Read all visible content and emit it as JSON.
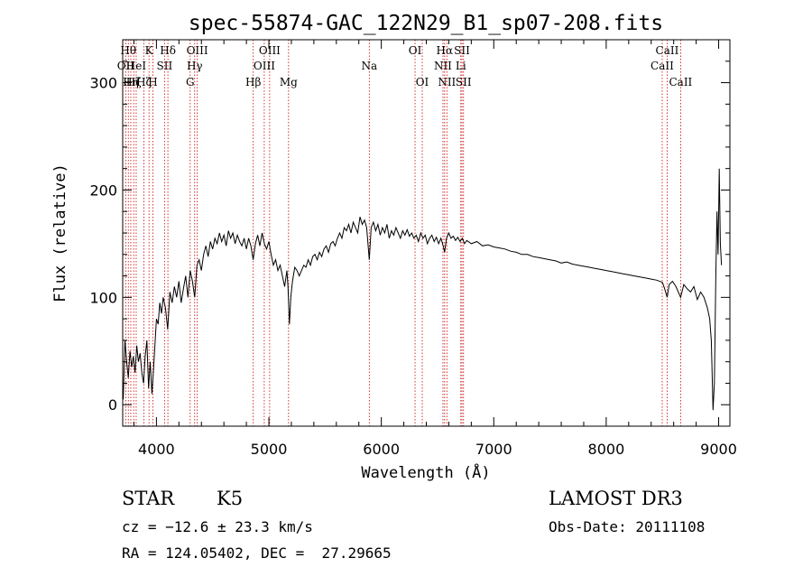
{
  "chart_data": {
    "type": "line",
    "title": "spec-55874-GAC_122N29_B1_sp07-208.fits",
    "xlabel": "Wavelength (Å)",
    "ylabel": "Flux (relative)",
    "xlim": [
      3700,
      9100
    ],
    "ylim": [
      -20,
      340
    ],
    "xticks": [
      4000,
      5000,
      6000,
      7000,
      8000,
      9000
    ],
    "yticks": [
      0,
      100,
      200,
      300
    ],
    "grid": false,
    "line_color": "#000000",
    "marker_color": "#cc0000",
    "series": [
      {
        "name": "flux",
        "points": [
          [
            3705,
            5
          ],
          [
            3720,
            60
          ],
          [
            3735,
            40
          ],
          [
            3750,
            25
          ],
          [
            3765,
            50
          ],
          [
            3780,
            35
          ],
          [
            3795,
            45
          ],
          [
            3810,
            30
          ],
          [
            3825,
            55
          ],
          [
            3840,
            40
          ],
          [
            3855,
            48
          ],
          [
            3870,
            30
          ],
          [
            3885,
            20
          ],
          [
            3900,
            45
          ],
          [
            3915,
            60
          ],
          [
            3930,
            15
          ],
          [
            3945,
            40
          ],
          [
            3960,
            10
          ],
          [
            3975,
            35
          ],
          [
            4000,
            80
          ],
          [
            4015,
            75
          ],
          [
            4030,
            95
          ],
          [
            4045,
            85
          ],
          [
            4060,
            100
          ],
          [
            4080,
            90
          ],
          [
            4100,
            70
          ],
          [
            4120,
            105
          ],
          [
            4140,
            95
          ],
          [
            4160,
            110
          ],
          [
            4180,
            100
          ],
          [
            4200,
            115
          ],
          [
            4220,
            95
          ],
          [
            4240,
            108
          ],
          [
            4260,
            120
          ],
          [
            4280,
            100
          ],
          [
            4300,
            125
          ],
          [
            4320,
            115
          ],
          [
            4340,
            100
          ],
          [
            4360,
            130
          ],
          [
            4380,
            135
          ],
          [
            4400,
            125
          ],
          [
            4420,
            140
          ],
          [
            4440,
            148
          ],
          [
            4460,
            138
          ],
          [
            4480,
            152
          ],
          [
            4500,
            145
          ],
          [
            4520,
            155
          ],
          [
            4540,
            150
          ],
          [
            4560,
            160
          ],
          [
            4580,
            152
          ],
          [
            4600,
            158
          ],
          [
            4620,
            148
          ],
          [
            4640,
            162
          ],
          [
            4660,
            155
          ],
          [
            4680,
            160
          ],
          [
            4700,
            150
          ],
          [
            4720,
            158
          ],
          [
            4740,
            152
          ],
          [
            4760,
            148
          ],
          [
            4780,
            155
          ],
          [
            4800,
            145
          ],
          [
            4820,
            155
          ],
          [
            4840,
            148
          ],
          [
            4860,
            135
          ],
          [
            4880,
            150
          ],
          [
            4900,
            158
          ],
          [
            4920,
            148
          ],
          [
            4940,
            160
          ],
          [
            4960,
            150
          ],
          [
            4980,
            145
          ],
          [
            5000,
            152
          ],
          [
            5020,
            140
          ],
          [
            5040,
            130
          ],
          [
            5060,
            135
          ],
          [
            5080,
            125
          ],
          [
            5100,
            130
          ],
          [
            5120,
            120
          ],
          [
            5140,
            110
          ],
          [
            5160,
            125
          ],
          [
            5170,
            110
          ],
          [
            5183,
            75
          ],
          [
            5195,
            100
          ],
          [
            5210,
            115
          ],
          [
            5230,
            128
          ],
          [
            5250,
            125
          ],
          [
            5270,
            120
          ],
          [
            5290,
            125
          ],
          [
            5310,
            130
          ],
          [
            5330,
            128
          ],
          [
            5350,
            135
          ],
          [
            5370,
            130
          ],
          [
            5390,
            138
          ],
          [
            5410,
            140
          ],
          [
            5430,
            135
          ],
          [
            5450,
            142
          ],
          [
            5470,
            138
          ],
          [
            5490,
            145
          ],
          [
            5510,
            148
          ],
          [
            5530,
            142
          ],
          [
            5550,
            150
          ],
          [
            5570,
            152
          ],
          [
            5590,
            148
          ],
          [
            5610,
            155
          ],
          [
            5630,
            160
          ],
          [
            5650,
            155
          ],
          [
            5670,
            165
          ],
          [
            5690,
            162
          ],
          [
            5710,
            168
          ],
          [
            5730,
            160
          ],
          [
            5750,
            170
          ],
          [
            5770,
            165
          ],
          [
            5790,
            160
          ],
          [
            5810,
            175
          ],
          [
            5830,
            168
          ],
          [
            5850,
            172
          ],
          [
            5870,
            165
          ],
          [
            5893,
            135
          ],
          [
            5910,
            165
          ],
          [
            5930,
            170
          ],
          [
            5950,
            162
          ],
          [
            5970,
            168
          ],
          [
            5990,
            158
          ],
          [
            6010,
            165
          ],
          [
            6030,
            160
          ],
          [
            6050,
            168
          ],
          [
            6070,
            155
          ],
          [
            6090,
            162
          ],
          [
            6110,
            158
          ],
          [
            6130,
            165
          ],
          [
            6150,
            160
          ],
          [
            6170,
            155
          ],
          [
            6190,
            162
          ],
          [
            6210,
            158
          ],
          [
            6230,
            163
          ],
          [
            6250,
            157
          ],
          [
            6270,
            160
          ],
          [
            6290,
            155
          ],
          [
            6310,
            158
          ],
          [
            6330,
            152
          ],
          [
            6350,
            160
          ],
          [
            6370,
            155
          ],
          [
            6390,
            158
          ],
          [
            6410,
            150
          ],
          [
            6430,
            155
          ],
          [
            6450,
            158
          ],
          [
            6470,
            152
          ],
          [
            6490,
            156
          ],
          [
            6510,
            150
          ],
          [
            6530,
            155
          ],
          [
            6550,
            148
          ],
          [
            6563,
            142
          ],
          [
            6580,
            155
          ],
          [
            6600,
            160
          ],
          [
            6620,
            155
          ],
          [
            6640,
            157
          ],
          [
            6660,
            153
          ],
          [
            6680,
            156
          ],
          [
            6700,
            152
          ],
          [
            6720,
            155
          ],
          [
            6740,
            150
          ],
          [
            6760,
            153
          ],
          [
            6800,
            150
          ],
          [
            6850,
            152
          ],
          [
            6900,
            148
          ],
          [
            6950,
            149
          ],
          [
            7000,
            147
          ],
          [
            7050,
            146
          ],
          [
            7100,
            145
          ],
          [
            7150,
            143
          ],
          [
            7200,
            142
          ],
          [
            7250,
            140
          ],
          [
            7300,
            140
          ],
          [
            7350,
            138
          ],
          [
            7400,
            137
          ],
          [
            7450,
            136
          ],
          [
            7500,
            135
          ],
          [
            7550,
            134
          ],
          [
            7600,
            132
          ],
          [
            7650,
            133
          ],
          [
            7700,
            131
          ],
          [
            7750,
            130
          ],
          [
            7800,
            129
          ],
          [
            7850,
            128
          ],
          [
            7900,
            127
          ],
          [
            7950,
            126
          ],
          [
            8000,
            125
          ],
          [
            8050,
            124
          ],
          [
            8100,
            123
          ],
          [
            8150,
            122
          ],
          [
            8200,
            121
          ],
          [
            8250,
            120
          ],
          [
            8300,
            119
          ],
          [
            8350,
            118
          ],
          [
            8400,
            117
          ],
          [
            8450,
            116
          ],
          [
            8500,
            114
          ],
          [
            8520,
            108
          ],
          [
            8542,
            100
          ],
          [
            8560,
            112
          ],
          [
            8590,
            115
          ],
          [
            8620,
            110
          ],
          [
            8662,
            100
          ],
          [
            8690,
            112
          ],
          [
            8720,
            108
          ],
          [
            8750,
            105
          ],
          [
            8780,
            110
          ],
          [
            8810,
            98
          ],
          [
            8840,
            105
          ],
          [
            8870,
            100
          ],
          [
            8900,
            90
          ],
          [
            8920,
            80
          ],
          [
            8935,
            60
          ],
          [
            8950,
            -5
          ],
          [
            8962,
            20
          ],
          [
            8975,
            120
          ],
          [
            8985,
            180
          ],
          [
            8995,
            140
          ],
          [
            9005,
            220
          ],
          [
            9015,
            150
          ],
          [
            9025,
            130
          ]
        ]
      }
    ],
    "lines": [
      {
        "x": 3750,
        "label": "Hθ",
        "row": 0
      },
      {
        "x": 3727,
        "label": "OII",
        "row": 1
      },
      {
        "x": 3772,
        "label": "Hη",
        "row": 2
      },
      {
        "x": 3798,
        "label": "Hζ",
        "row": 2
      },
      {
        "x": 3820,
        "label": "HeI",
        "row": 1
      },
      {
        "x": 3889,
        "label": "Hζ",
        "row": 2
      },
      {
        "x": 3934,
        "label": "K",
        "row": 0
      },
      {
        "x": 3969,
        "label": "H",
        "row": 2
      },
      {
        "x": 4072,
        "label": "SII",
        "row": 1
      },
      {
        "x": 4102,
        "label": "Hδ",
        "row": 0
      },
      {
        "x": 4300,
        "label": "G",
        "row": 2
      },
      {
        "x": 4340,
        "label": "Hγ",
        "row": 1
      },
      {
        "x": 4363,
        "label": "OIII",
        "row": 0
      },
      {
        "x": 4861,
        "label": "Hβ",
        "row": 2
      },
      {
        "x": 4959,
        "label": "OIII",
        "row": 1
      },
      {
        "x": 5007,
        "label": "OIII",
        "row": 0
      },
      {
        "x": 5175,
        "label": "Mg",
        "row": 2
      },
      {
        "x": 5893,
        "label": "Na",
        "row": 1
      },
      {
        "x": 6300,
        "label": "OI",
        "row": 0
      },
      {
        "x": 6364,
        "label": "OI",
        "row": 2
      },
      {
        "x": 6548,
        "label": "NII",
        "row": 1
      },
      {
        "x": 6563,
        "label": "Hα",
        "row": 0
      },
      {
        "x": 6583,
        "label": "NII",
        "row": 2
      },
      {
        "x": 6707,
        "label": "Li",
        "row": 1
      },
      {
        "x": 6717,
        "label": "SII",
        "row": 0
      },
      {
        "x": 6731,
        "label": "SII",
        "row": 2
      },
      {
        "x": 8498,
        "label": "CaII",
        "row": 1
      },
      {
        "x": 8542,
        "label": "CaII",
        "row": 0
      },
      {
        "x": 8662,
        "label": "CaII",
        "row": 2
      }
    ]
  },
  "info": {
    "class": "STAR",
    "subclass": "K5",
    "survey": "LAMOST DR3",
    "cz": "cz = −12.6 ± 23.3 km/s",
    "obs_date": "Obs-Date: 20111108",
    "radec": "RA = 124.05402, DEC =  27.29665"
  }
}
